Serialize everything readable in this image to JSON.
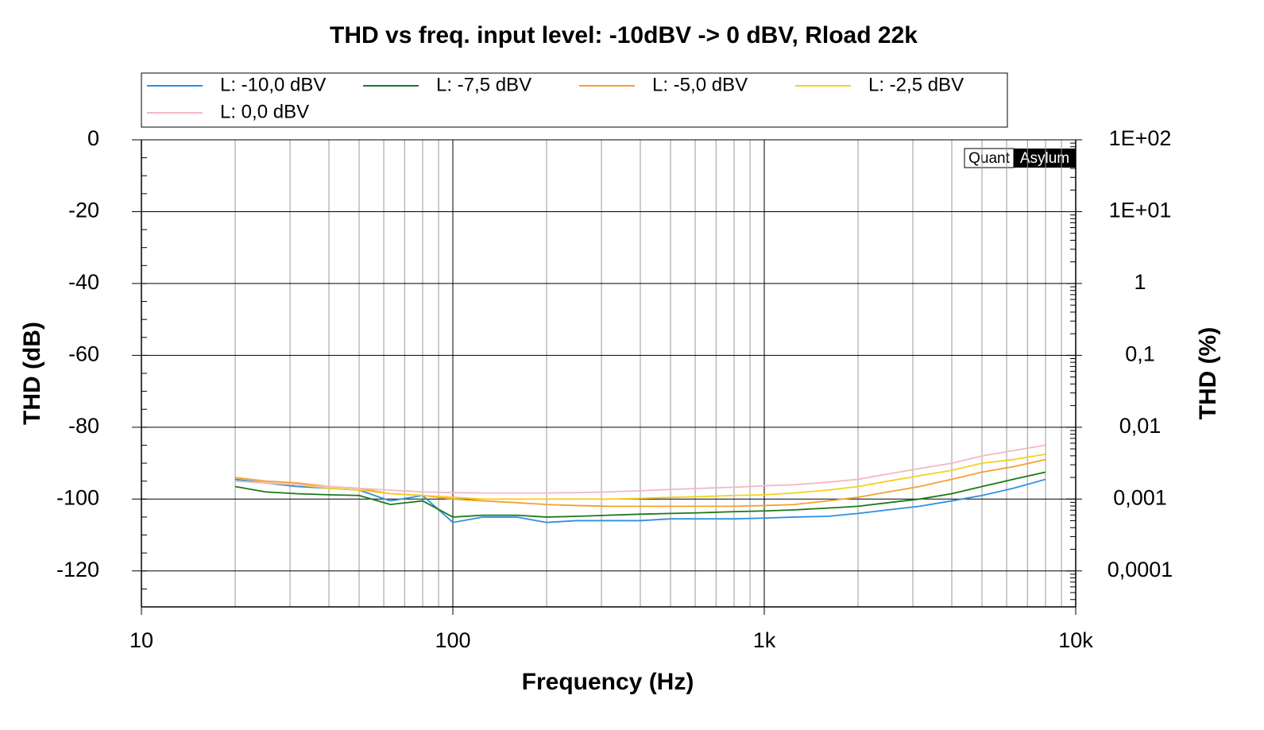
{
  "chart_data": {
    "type": "line",
    "title": "THD vs freq. input level: -10dBV  -> 0 dBV, Rload 22k",
    "xlabel": "Frequency (Hz)",
    "ylabel": "THD (dB)",
    "y2label": "THD (%)",
    "logo": {
      "left": "Quant",
      "right": "Asylum"
    },
    "xscale": "log",
    "y2scale": "log",
    "grid": true,
    "legend": "top",
    "xlim": [
      10,
      10000
    ],
    "xticks": [
      10,
      100,
      {
        "value": 1000,
        "label": "1k"
      },
      {
        "value": 10000,
        "label": "10k"
      }
    ],
    "ylim": [
      -130,
      0
    ],
    "yticks": [
      0,
      -20,
      -40,
      -60,
      -80,
      -100,
      -120
    ],
    "y2lim": [
      3.16e-05,
      100
    ],
    "y2ticks": [
      {
        "value": 100,
        "label": "1E+02"
      },
      {
        "value": 10,
        "label": "1E+01"
      },
      1,
      {
        "value": 0.1,
        "label": "0,1"
      },
      {
        "value": 0.01,
        "label": "0,01"
      },
      {
        "value": 0.001,
        "label": "0,001"
      },
      {
        "value": 0.0001,
        "label": "0,0001"
      }
    ],
    "x": [
      20,
      25,
      31.5,
      40,
      50,
      63,
      80,
      100,
      125,
      160,
      200,
      250,
      315,
      400,
      500,
      630,
      800,
      1000,
      1250,
      1600,
      2000,
      2500,
      3150,
      4000,
      5000,
      6300,
      8000
    ],
    "series": [
      {
        "name": "L: -10,0 dBV",
        "color": "#2f8fe0",
        "values": [
          -94.5,
          -95.5,
          -96.5,
          -97,
          -97.5,
          -100.5,
          -99,
          -106.5,
          -105,
          -105,
          -106.5,
          -106,
          -106,
          -106,
          -105.5,
          -105.5,
          -105.5,
          -105.3,
          -105,
          -104.8,
          -104,
          -103,
          -102,
          -100.5,
          -99,
          -97,
          -94.5
        ]
      },
      {
        "name": "L: -7,5 dBV",
        "color": "#1a7a1a",
        "values": [
          -96.5,
          -98,
          -98.5,
          -98.8,
          -99,
          -101.5,
          -100.5,
          -105,
          -104.5,
          -104.5,
          -105,
          -104.8,
          -104.5,
          -104.2,
          -104,
          -103.8,
          -103.5,
          -103.3,
          -103,
          -102.5,
          -102,
          -101,
          -100,
          -98.5,
          -96.5,
          -94.5,
          -92.5
        ]
      },
      {
        "name": "L: -5,0 dBV",
        "color": "#f5a030",
        "values": [
          -94,
          -95,
          -95.5,
          -96.5,
          -97,
          -98.5,
          -99,
          -100,
          -100.5,
          -101,
          -101.5,
          -101.8,
          -102,
          -102,
          -102,
          -102,
          -102,
          -101.8,
          -101.5,
          -100.5,
          -99.5,
          -98,
          -96.5,
          -94.5,
          -92.5,
          -91,
          -89
        ]
      },
      {
        "name": "L: -2,5 dBV",
        "color": "#f5d020",
        "values": [
          -95,
          -95.5,
          -96,
          -97,
          -97.5,
          -98.5,
          -99,
          -99.5,
          -100,
          -100,
          -100,
          -100,
          -100,
          -99.8,
          -99.5,
          -99.3,
          -99,
          -98.8,
          -98.3,
          -97.5,
          -96.5,
          -95,
          -93.5,
          -92,
          -90,
          -89,
          -87.5
        ]
      },
      {
        "name": "L: 0,0 dBV",
        "color": "#f4b8c0",
        "values": [
          -95,
          -95.5,
          -96,
          -96.5,
          -97,
          -97.5,
          -98,
          -98.2,
          -98.3,
          -98.3,
          -98.3,
          -98.2,
          -98,
          -97.7,
          -97.3,
          -97,
          -96.7,
          -96.3,
          -96,
          -95.3,
          -94.5,
          -93,
          -91.5,
          -90,
          -88,
          -86.5,
          -85
        ]
      }
    ]
  }
}
